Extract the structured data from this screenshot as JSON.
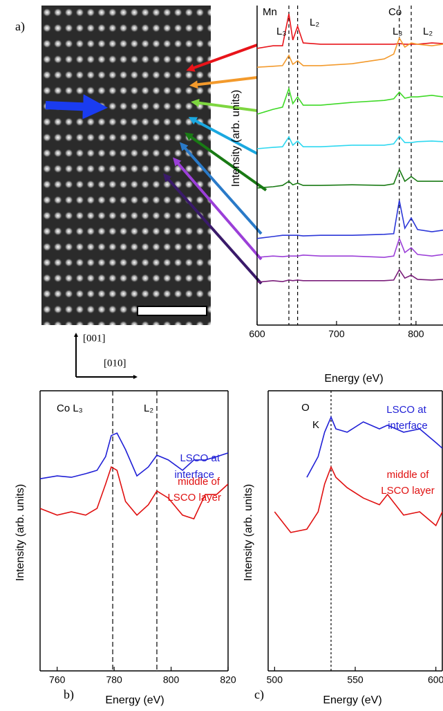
{
  "panel_labels": [
    "a)",
    "b)",
    "c)"
  ],
  "directions": [
    "[001]",
    "[010]"
  ],
  "chart_data": [
    {
      "type": "line",
      "xlabel": "Energy (eV)",
      "ylabel": "Intensity (arb. units)",
      "x": [
        600,
        620,
        632,
        640,
        645,
        651,
        658,
        680,
        720,
        760,
        772,
        779,
        786,
        794,
        802,
        820,
        834
      ],
      "xlim": [
        600,
        834
      ],
      "xticks": [
        600,
        700,
        800
      ],
      "ylim": [
        0,
        10
      ],
      "vlines": [
        640,
        651,
        779,
        794
      ],
      "annotations": [
        {
          "text": "Mn",
          "color": "#000"
        },
        {
          "text": "L₃",
          "color": "#000"
        },
        {
          "text": "L₂",
          "color": "#000"
        },
        {
          "text": "Co",
          "color": "#000"
        },
        {
          "text": "L₃",
          "color": "#000"
        },
        {
          "text": "L₂",
          "color": "#000"
        }
      ],
      "series": [
        {
          "color": "#e8141a",
          "values": [
            8.66,
            8.74,
            8.74,
            9.74,
            8.92,
            9.35,
            8.83,
            8.79,
            8.79,
            8.79,
            8.79,
            8.81,
            8.79,
            8.79,
            8.79,
            8.83,
            8.81
          ]
        },
        {
          "color": "#f39a2c",
          "values": [
            8.07,
            8.1,
            8.12,
            8.44,
            8.16,
            8.27,
            8.12,
            8.12,
            8.18,
            8.33,
            8.48,
            8.98,
            8.7,
            8.83,
            8.79,
            8.74,
            8.79
          ]
        },
        {
          "color": "#3ed926",
          "values": [
            6.6,
            6.75,
            6.82,
            7.4,
            6.93,
            7.14,
            6.88,
            6.88,
            6.97,
            7.03,
            7.08,
            7.29,
            7.1,
            7.14,
            7.14,
            7.19,
            7.14
          ]
        },
        {
          "color": "#2ed8f0",
          "values": [
            5.52,
            5.56,
            5.58,
            5.89,
            5.63,
            5.76,
            5.58,
            5.58,
            5.63,
            5.63,
            5.67,
            5.91,
            5.71,
            5.71,
            5.74,
            5.76,
            5.74
          ]
        },
        {
          "color": "#197a14",
          "values": [
            4.29,
            4.33,
            4.37,
            4.5,
            4.39,
            4.44,
            4.37,
            4.37,
            4.39,
            4.37,
            4.42,
            4.87,
            4.5,
            4.65,
            4.5,
            4.5,
            4.5
          ]
        },
        {
          "color": "#2b36d8",
          "values": [
            2.71,
            2.77,
            2.81,
            2.81,
            2.81,
            2.81,
            2.79,
            2.81,
            2.81,
            2.84,
            2.86,
            3.9,
            3.03,
            3.35,
            2.99,
            2.92,
            2.97
          ]
        },
        {
          "color": "#9b3fd8",
          "values": [
            2.12,
            2.16,
            2.14,
            2.16,
            2.16,
            2.16,
            2.19,
            2.16,
            2.16,
            2.12,
            2.16,
            2.71,
            2.27,
            2.42,
            2.21,
            2.16,
            2.21
          ]
        },
        {
          "color": "#7a1e7a",
          "values": [
            1.34,
            1.39,
            1.36,
            1.41,
            1.39,
            1.41,
            1.39,
            1.39,
            1.39,
            1.39,
            1.41,
            1.73,
            1.47,
            1.56,
            1.43,
            1.41,
            1.43
          ]
        }
      ]
    },
    {
      "type": "line",
      "xlabel": "Energy (eV)",
      "ylabel": "Intensity (arb. units)",
      "x": [
        754,
        760,
        765,
        770,
        774,
        777,
        779,
        781,
        784,
        788,
        792,
        795,
        799,
        804,
        808,
        812,
        816,
        820
      ],
      "xlim": [
        754,
        820
      ],
      "xticks": [
        760,
        780,
        800,
        820
      ],
      "ylim": [
        0,
        10
      ],
      "vlines": [
        779.5,
        795
      ],
      "annotations": [
        {
          "text": "Co L₃",
          "color": "#000"
        },
        {
          "text": "L₂",
          "color": "#000"
        },
        {
          "text": "LSCO at",
          "color": "#1f1fd6"
        },
        {
          "text": "interface",
          "color": "#1f1fd6"
        },
        {
          "text": "middle of",
          "color": "#e01010"
        },
        {
          "text": "LSCO layer",
          "color": "#e01010"
        }
      ],
      "series": [
        {
          "color": "#1f1fd6",
          "values": [
            6.86,
            6.96,
            6.91,
            7.04,
            7.16,
            7.65,
            8.4,
            8.49,
            7.9,
            6.96,
            7.28,
            7.7,
            7.53,
            7.16,
            7.53,
            7.53,
            7.65,
            7.78
          ]
        },
        {
          "color": "#e01010",
          "values": [
            5.8,
            5.56,
            5.68,
            5.56,
            5.8,
            6.67,
            7.28,
            7.16,
            6.05,
            5.56,
            5.93,
            6.42,
            6.17,
            5.56,
            5.43,
            6.3,
            6.3,
            6.67
          ]
        }
      ]
    },
    {
      "type": "line",
      "xlabel": "Energy (eV)",
      "ylabel": "Intensity (arb. units)",
      "x": [
        500,
        510,
        520,
        527,
        531,
        535,
        538,
        545,
        555,
        565,
        570,
        580,
        590,
        600,
        604
      ],
      "xlim": [
        496,
        604
      ],
      "xticks": [
        500,
        550,
        600
      ],
      "ylim": [
        0,
        10
      ],
      "vlines": [
        535
      ],
      "annotations": [
        {
          "text": "O",
          "color": "#000"
        },
        {
          "text": "K",
          "color": "#000"
        },
        {
          "text": "LSCO at",
          "color": "#1f1fd6"
        },
        {
          "text": "interface",
          "color": "#1f1fd6"
        },
        {
          "text": "middle of",
          "color": "#e01010"
        },
        {
          "text": "LSCO layer",
          "color": "#e01010"
        }
      ],
      "series": [
        {
          "color": "#1f1fd6",
          "values": [
            null,
            null,
            6.91,
            7.65,
            8.52,
            9.06,
            8.64,
            8.52,
            8.89,
            8.64,
            8.77,
            8.52,
            8.64,
            8.15,
            7.95
          ]
        },
        {
          "color": "#e01010",
          "values": [
            5.68,
            4.94,
            5.06,
            5.68,
            6.67,
            7.28,
            6.91,
            6.54,
            6.17,
            5.93,
            6.3,
            5.56,
            5.68,
            5.19,
            5.68
          ]
        }
      ]
    }
  ]
}
